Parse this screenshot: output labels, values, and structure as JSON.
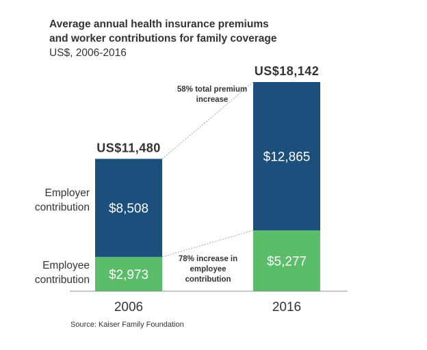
{
  "chart_data": {
    "type": "bar",
    "stacked": true,
    "title_lines": [
      "Average annual health insurance premiums",
      "and worker contributions for family coverage"
    ],
    "subtitle": "US$, 2006-2016",
    "categories": [
      "2006",
      "2016"
    ],
    "series": [
      {
        "name": "Employee contribution",
        "name_lines": [
          "Employee",
          "contribution"
        ],
        "values": [
          2973,
          5277
        ],
        "labels": [
          "$2,973",
          "$5,277"
        ],
        "color": "#5bbd6a"
      },
      {
        "name": "Employer contribution",
        "name_lines": [
          "Employer",
          "contribution"
        ],
        "values": [
          8508,
          12865
        ],
        "labels": [
          "$8,508",
          "$12,865"
        ],
        "color": "#1c4f7c"
      }
    ],
    "totals": [
      11480,
      18142
    ],
    "total_labels": [
      "US$11,480",
      "US$18,142"
    ],
    "annotations": [
      {
        "lines": [
          "58%  total premium",
          "increase"
        ]
      },
      {
        "lines": [
          "78%  increase in",
          "employee",
          "contribution"
        ]
      }
    ],
    "source": "Source: Kaiser Family Foundation",
    "ylim": [
      0,
      20000
    ],
    "grid": false,
    "legend": "none"
  }
}
